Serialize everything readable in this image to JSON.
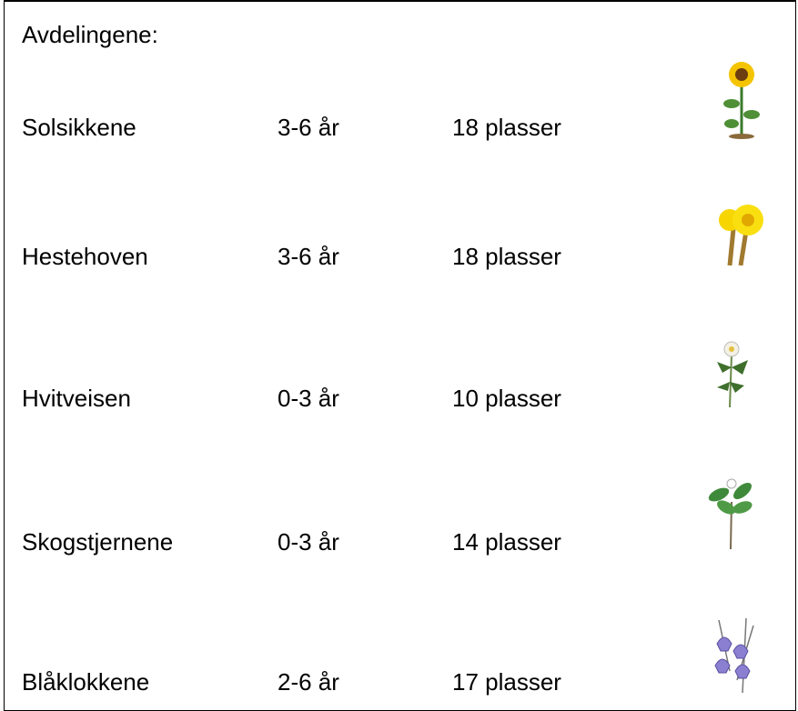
{
  "title": "Avdelingene:",
  "departments": [
    {
      "name": "Solsikkene",
      "ages": "3-6 år",
      "places": "18 plasser"
    },
    {
      "name": "Hestehoven",
      "ages": "3-6 år",
      "places": "18 plasser"
    },
    {
      "name": "Hvitveisen",
      "ages": "0-3 år",
      "places": "10 plasser"
    },
    {
      "name": "Skogstjernene",
      "ages": "0-3 år",
      "places": "14 plasser"
    },
    {
      "name": "Blåklokkene",
      "ages": "2-6 år",
      "places": "17 plasser"
    }
  ]
}
